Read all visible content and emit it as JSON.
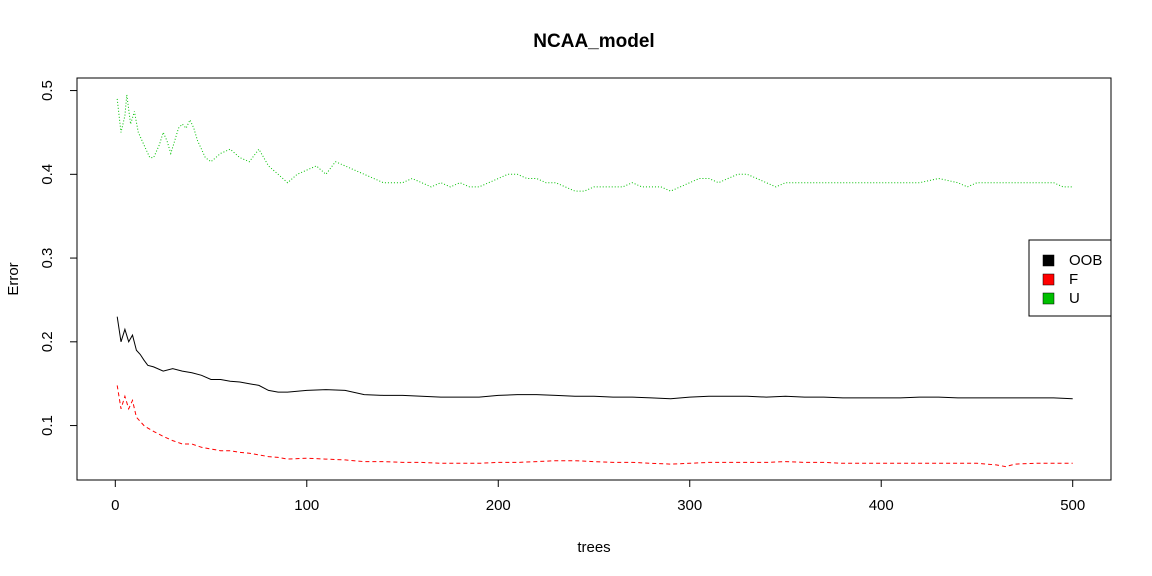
{
  "chart_data": {
    "type": "line",
    "title": "NCAA_model",
    "xlabel": "trees",
    "ylabel": "Error",
    "xlim": [
      -20,
      520
    ],
    "ylim": [
      0.035,
      0.515
    ],
    "xticks": [
      0,
      100,
      200,
      300,
      400,
      500
    ],
    "yticks": [
      0.1,
      0.2,
      0.3,
      0.4,
      0.5
    ],
    "grid": false,
    "legend_position": "right",
    "series": [
      {
        "name": "OOB",
        "color": "#000000",
        "dash": "solid",
        "points": [
          [
            1,
            0.23
          ],
          [
            3,
            0.2
          ],
          [
            5,
            0.215
          ],
          [
            7,
            0.2
          ],
          [
            9,
            0.208
          ],
          [
            11,
            0.19
          ],
          [
            13,
            0.185
          ],
          [
            15,
            0.178
          ],
          [
            17,
            0.172
          ],
          [
            20,
            0.17
          ],
          [
            25,
            0.165
          ],
          [
            30,
            0.168
          ],
          [
            35,
            0.165
          ],
          [
            40,
            0.163
          ],
          [
            45,
            0.16
          ],
          [
            50,
            0.155
          ],
          [
            55,
            0.155
          ],
          [
            60,
            0.153
          ],
          [
            65,
            0.152
          ],
          [
            70,
            0.15
          ],
          [
            75,
            0.148
          ],
          [
            80,
            0.142
          ],
          [
            85,
            0.14
          ],
          [
            90,
            0.14
          ],
          [
            100,
            0.142
          ],
          [
            110,
            0.143
          ],
          [
            120,
            0.142
          ],
          [
            130,
            0.137
          ],
          [
            140,
            0.136
          ],
          [
            150,
            0.136
          ],
          [
            160,
            0.135
          ],
          [
            170,
            0.134
          ],
          [
            180,
            0.134
          ],
          [
            190,
            0.134
          ],
          [
            200,
            0.136
          ],
          [
            210,
            0.137
          ],
          [
            220,
            0.137
          ],
          [
            230,
            0.136
          ],
          [
            240,
            0.135
          ],
          [
            250,
            0.135
          ],
          [
            260,
            0.134
          ],
          [
            270,
            0.134
          ],
          [
            280,
            0.133
          ],
          [
            290,
            0.132
          ],
          [
            300,
            0.134
          ],
          [
            310,
            0.135
          ],
          [
            320,
            0.135
          ],
          [
            330,
            0.135
          ],
          [
            340,
            0.134
          ],
          [
            350,
            0.135
          ],
          [
            360,
            0.134
          ],
          [
            370,
            0.134
          ],
          [
            380,
            0.133
          ],
          [
            390,
            0.133
          ],
          [
            400,
            0.133
          ],
          [
            410,
            0.133
          ],
          [
            420,
            0.134
          ],
          [
            430,
            0.134
          ],
          [
            440,
            0.133
          ],
          [
            450,
            0.133
          ],
          [
            460,
            0.133
          ],
          [
            470,
            0.133
          ],
          [
            480,
            0.133
          ],
          [
            490,
            0.133
          ],
          [
            500,
            0.132
          ]
        ]
      },
      {
        "name": "F",
        "color": "#ff0000",
        "dash": "dashed",
        "points": [
          [
            1,
            0.148
          ],
          [
            3,
            0.12
          ],
          [
            5,
            0.135
          ],
          [
            7,
            0.12
          ],
          [
            9,
            0.13
          ],
          [
            11,
            0.11
          ],
          [
            13,
            0.105
          ],
          [
            15,
            0.1
          ],
          [
            17,
            0.097
          ],
          [
            20,
            0.093
          ],
          [
            25,
            0.087
          ],
          [
            30,
            0.082
          ],
          [
            35,
            0.078
          ],
          [
            40,
            0.078
          ],
          [
            45,
            0.074
          ],
          [
            50,
            0.072
          ],
          [
            55,
            0.07
          ],
          [
            60,
            0.07
          ],
          [
            65,
            0.068
          ],
          [
            70,
            0.067
          ],
          [
            75,
            0.065
          ],
          [
            80,
            0.063
          ],
          [
            85,
            0.062
          ],
          [
            90,
            0.06
          ],
          [
            100,
            0.061
          ],
          [
            110,
            0.06
          ],
          [
            120,
            0.059
          ],
          [
            130,
            0.057
          ],
          [
            140,
            0.057
          ],
          [
            150,
            0.056
          ],
          [
            160,
            0.056
          ],
          [
            170,
            0.055
          ],
          [
            180,
            0.055
          ],
          [
            190,
            0.055
          ],
          [
            200,
            0.056
          ],
          [
            210,
            0.056
          ],
          [
            220,
            0.057
          ],
          [
            230,
            0.058
          ],
          [
            240,
            0.058
          ],
          [
            250,
            0.057
          ],
          [
            260,
            0.056
          ],
          [
            270,
            0.056
          ],
          [
            280,
            0.055
          ],
          [
            290,
            0.054
          ],
          [
            300,
            0.055
          ],
          [
            310,
            0.056
          ],
          [
            320,
            0.056
          ],
          [
            330,
            0.056
          ],
          [
            340,
            0.056
          ],
          [
            350,
            0.057
          ],
          [
            360,
            0.056
          ],
          [
            370,
            0.056
          ],
          [
            380,
            0.055
          ],
          [
            390,
            0.055
          ],
          [
            400,
            0.055
          ],
          [
            410,
            0.055
          ],
          [
            420,
            0.055
          ],
          [
            430,
            0.055
          ],
          [
            440,
            0.055
          ],
          [
            450,
            0.055
          ],
          [
            460,
            0.053
          ],
          [
            465,
            0.051
          ],
          [
            470,
            0.054
          ],
          [
            480,
            0.055
          ],
          [
            490,
            0.055
          ],
          [
            500,
            0.055
          ]
        ]
      },
      {
        "name": "U",
        "color": "#00c000",
        "dash": "dotted",
        "points": [
          [
            1,
            0.49
          ],
          [
            3,
            0.45
          ],
          [
            5,
            0.47
          ],
          [
            6,
            0.495
          ],
          [
            8,
            0.46
          ],
          [
            10,
            0.475
          ],
          [
            12,
            0.45
          ],
          [
            14,
            0.44
          ],
          [
            16,
            0.43
          ],
          [
            18,
            0.42
          ],
          [
            20,
            0.42
          ],
          [
            23,
            0.435
          ],
          [
            25,
            0.45
          ],
          [
            27,
            0.44
          ],
          [
            29,
            0.425
          ],
          [
            31,
            0.44
          ],
          [
            33,
            0.455
          ],
          [
            35,
            0.46
          ],
          [
            37,
            0.455
          ],
          [
            39,
            0.465
          ],
          [
            41,
            0.455
          ],
          [
            43,
            0.44
          ],
          [
            45,
            0.43
          ],
          [
            47,
            0.42
          ],
          [
            50,
            0.415
          ],
          [
            55,
            0.425
          ],
          [
            60,
            0.43
          ],
          [
            65,
            0.42
          ],
          [
            70,
            0.415
          ],
          [
            75,
            0.43
          ],
          [
            80,
            0.41
          ],
          [
            85,
            0.4
          ],
          [
            90,
            0.39
          ],
          [
            95,
            0.4
          ],
          [
            100,
            0.405
          ],
          [
            105,
            0.41
          ],
          [
            110,
            0.4
          ],
          [
            115,
            0.415
          ],
          [
            120,
            0.41
          ],
          [
            125,
            0.405
          ],
          [
            130,
            0.4
          ],
          [
            135,
            0.395
          ],
          [
            140,
            0.39
          ],
          [
            145,
            0.39
          ],
          [
            150,
            0.39
          ],
          [
            155,
            0.395
          ],
          [
            160,
            0.39
          ],
          [
            165,
            0.385
          ],
          [
            170,
            0.39
          ],
          [
            175,
            0.385
          ],
          [
            180,
            0.39
          ],
          [
            185,
            0.385
          ],
          [
            190,
            0.385
          ],
          [
            195,
            0.39
          ],
          [
            200,
            0.395
          ],
          [
            205,
            0.4
          ],
          [
            210,
            0.4
          ],
          [
            215,
            0.395
          ],
          [
            220,
            0.395
          ],
          [
            225,
            0.39
          ],
          [
            230,
            0.39
          ],
          [
            235,
            0.385
          ],
          [
            240,
            0.38
          ],
          [
            245,
            0.38
          ],
          [
            250,
            0.385
          ],
          [
            255,
            0.385
          ],
          [
            260,
            0.385
          ],
          [
            265,
            0.385
          ],
          [
            270,
            0.39
          ],
          [
            275,
            0.385
          ],
          [
            280,
            0.385
          ],
          [
            285,
            0.385
          ],
          [
            290,
            0.38
          ],
          [
            295,
            0.385
          ],
          [
            300,
            0.39
          ],
          [
            305,
            0.395
          ],
          [
            310,
            0.395
          ],
          [
            315,
            0.39
          ],
          [
            320,
            0.395
          ],
          [
            325,
            0.4
          ],
          [
            330,
            0.4
          ],
          [
            335,
            0.395
          ],
          [
            340,
            0.39
          ],
          [
            345,
            0.385
          ],
          [
            350,
            0.39
          ],
          [
            355,
            0.39
          ],
          [
            360,
            0.39
          ],
          [
            370,
            0.39
          ],
          [
            380,
            0.39
          ],
          [
            390,
            0.39
          ],
          [
            400,
            0.39
          ],
          [
            410,
            0.39
          ],
          [
            420,
            0.39
          ],
          [
            430,
            0.395
          ],
          [
            440,
            0.39
          ],
          [
            445,
            0.385
          ],
          [
            450,
            0.39
          ],
          [
            455,
            0.39
          ],
          [
            460,
            0.39
          ],
          [
            470,
            0.39
          ],
          [
            480,
            0.39
          ],
          [
            490,
            0.39
          ],
          [
            495,
            0.385
          ],
          [
            500,
            0.385
          ]
        ]
      }
    ]
  }
}
